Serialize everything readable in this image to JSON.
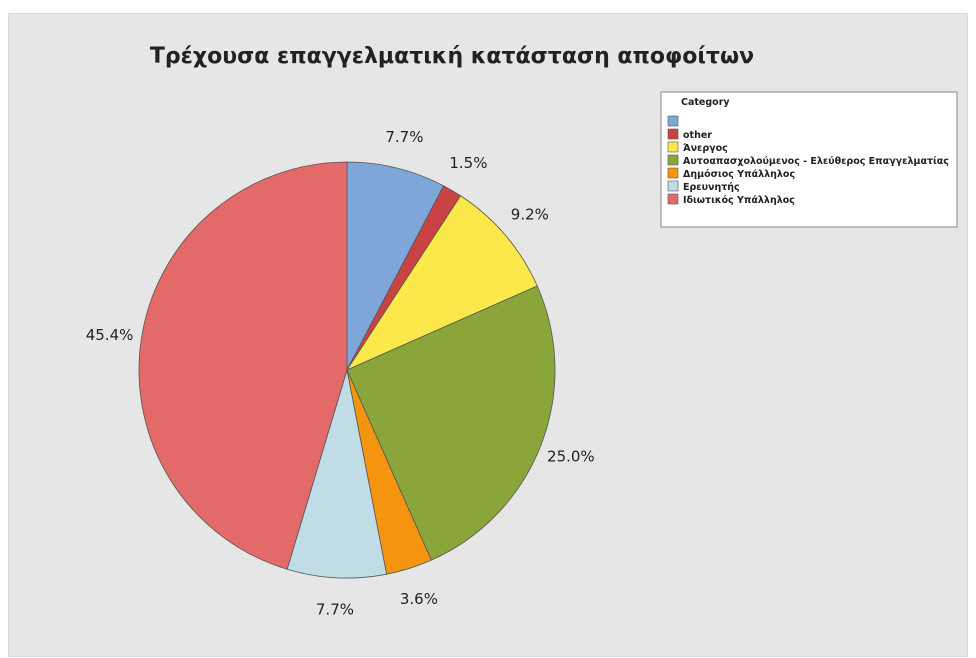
{
  "chart_data": {
    "type": "pie",
    "title": "Τρέχουσα επαγγελματική κατάσταση αποφοίτων",
    "legend_title": "Category",
    "legend_position": "top-right",
    "slices": [
      {
        "label": "",
        "value": 7.7,
        "value_label": "7.7%",
        "color": "#7ea6d8"
      },
      {
        "label": "other",
        "value": 1.5,
        "value_label": "1.5%",
        "color": "#c94343"
      },
      {
        "label": "Άνεργος",
        "value": 9.2,
        "value_label": "9.2%",
        "color": "#fbe84a"
      },
      {
        "label": "Αυτοαπασχολούμενος - Ελεύθερος Επαγγελματίας",
        "value": 25.0,
        "value_label": "25.0%",
        "color": "#8aa63a"
      },
      {
        "label": "Δημόσιος Υπάλληλος",
        "value": 3.6,
        "value_label": "3.6%",
        "color": "#f5940f"
      },
      {
        "label": "Ερευνητής",
        "value": 7.7,
        "value_label": "7.7%",
        "color": "#c0dce6"
      },
      {
        "label": "Ιδιωτικός Υπάλληλος",
        "value": 45.4,
        "value_label": "45.4%",
        "color": "#e46a6a"
      }
    ]
  }
}
